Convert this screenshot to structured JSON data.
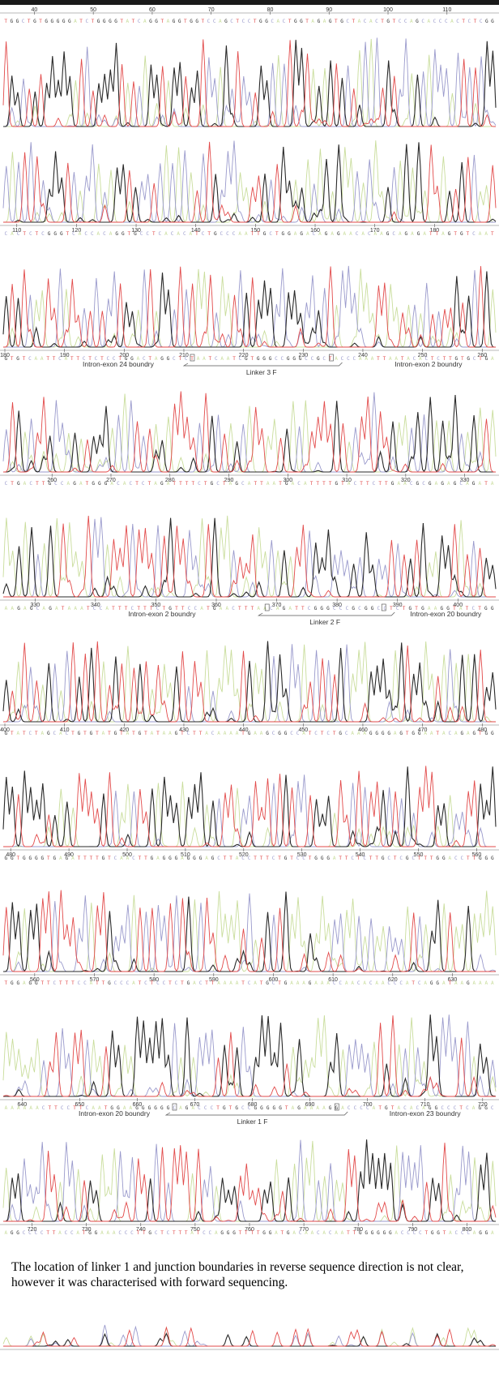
{
  "figure": {
    "caption": "The location of linker 1 and junction boundaries in reverse sequence direction is not clear, however it was characterised with forward sequencing."
  },
  "colors": {
    "A": "#c9dd9c",
    "C": "#9a9acc",
    "G": "#2a2a2a",
    "T": "#e24a4a"
  },
  "chart_data": {
    "type": "line",
    "title": "",
    "xlabel": "",
    "ylabel": "",
    "panels": [
      {
        "ticks_top": true,
        "ticks": [
          40,
          50,
          60,
          70,
          80,
          90,
          100,
          110
        ],
        "range": [
          35,
          118
        ],
        "sequence": "TGGCTGTGGGGGATCTGGGGTATCAGGTAGGTGGTCCAGCTCCTGGCACTGGTAGAGTGCTACACTGTCCAGCACCCACTCTCGG"
      },
      {
        "ticks_top": false,
        "ticks": [
          110,
          120,
          130,
          140,
          150,
          160,
          170,
          180
        ],
        "range": [
          108,
          190
        ],
        "sequence": "CACTCTCGGGTCACCACAGGTGCCTCACACATCTGCCCAATTGCTGGAGACAGAGAACACAAGCAGAGATTAGTGTCAAT"
      },
      {
        "ticks_top": false,
        "ticks": [
          180,
          190,
          200,
          210,
          220,
          230,
          240,
          250,
          260
        ],
        "range": [
          180,
          262
        ],
        "sequence": "GTGTCAATTCATTCTCTCCTGGACTAGGCTCTAATCAATCGTGGGCCGGGCCGCTACCCAAATTAATACACTCTTGTGCTGA",
        "annotations": [
          {
            "label": "Intron-exon 24 boundry",
            "x": 199
          },
          {
            "label": "Linker 3 F",
            "x": 223,
            "from": 210,
            "to": 236
          },
          {
            "label": "Intron-exon 2 boundry",
            "x": 251
          }
        ]
      },
      {
        "ticks_top": false,
        "ticks": [
          260,
          270,
          280,
          290,
          300,
          310,
          320,
          330
        ],
        "range": [
          252,
          335
        ],
        "sequence": "CTGACTTGCCAGATGGGACACTCTAGATTTTCTGCTAGCATTAATGACATTTTGTACTTCTTGAACGCGAGAGCAGATA"
      },
      {
        "ticks_top": false,
        "ticks": [
          330,
          340,
          350,
          360,
          370,
          380,
          390,
          400
        ],
        "range": [
          325,
          406
        ],
        "sequence": "AAGAGCAGATAAATCCATTTCTTTCTGTTCCATGAACTTTAACAGATTCGGGCCCGCGGCCTCTGTGAAGGTATCTGG",
        "annotations": [
          {
            "label": "Intron-exon 2 boundry",
            "x": 351
          },
          {
            "label": "Linker 2 F",
            "x": 378,
            "from": 367,
            "to": 389
          },
          {
            "label": "Intron-exon 20 boundry",
            "x": 398
          }
        ]
      },
      {
        "ticks_top": false,
        "ticks": [
          400,
          410,
          420,
          430,
          440,
          450,
          460,
          470,
          480
        ],
        "range": [
          400,
          482
        ],
        "sequence": "GTATCTAGCACTGTGTATGTATGTATAAGTCTTACAAAATGAAGCGGCCATCTCTGCAAAGGGGAGTGGAATACAGAGTGG"
      },
      {
        "ticks_top": false,
        "ticks": [
          480,
          490,
          500,
          510,
          520,
          530,
          540,
          550,
          560
        ],
        "range": [
          479,
          563
        ],
        "sequence": "GGTGGGGTGAGATTTTGTCAACTTGAGGGAGGGAGCTTACCTTTCTGTCCTGGGATTCTCTTGCTCGCTTTGGACCTTGGG"
      },
      {
        "ticks_top": false,
        "ticks": [
          560,
          570,
          580,
          590,
          600,
          610,
          620,
          630
        ],
        "range": [
          555,
          637
        ],
        "sequence": "TGGAGGTTCTTTCCATTGCCCATCTCCTCTGACTTAAAATCATGCTGAAAGAAACCAACACAACCCATCAGGATAAGAAAA"
      },
      {
        "ticks_top": false,
        "ticks": [
          640,
          650,
          660,
          670,
          680,
          690,
          700,
          710,
          720
        ],
        "range": [
          637,
          722
        ],
        "sequence": "AAAAAACTTCCTTCAATGGAAGGGGGGCAGACCCTGTGCCGGGGGTAGAAAAGGACCCCATGTACACAGGCCCTCAGGC",
        "annotations": [
          {
            "label": "Intron-exon 20 boundry",
            "x": 656
          },
          {
            "label": "Linker 1 F",
            "x": 680,
            "from": 665,
            "to": 696
          },
          {
            "label": "Intron-exon 23 boundry",
            "x": 710
          }
        ]
      },
      {
        "ticks_top": false,
        "ticks": [
          720,
          730,
          740,
          750,
          760,
          770,
          780,
          790,
          800
        ],
        "range": [
          715,
          805
        ],
        "sequence": "AGGCCCCTTACCATGGAAACCCTTGCTCTTTATCCAGGGTTTTGGATGACAACACAATTGGGGGGACCCCTGGTACCCAGGA"
      },
      {
        "ticks_top": false,
        "ticks": [],
        "range": [
          800,
          880
        ],
        "sequence": ""
      }
    ]
  }
}
